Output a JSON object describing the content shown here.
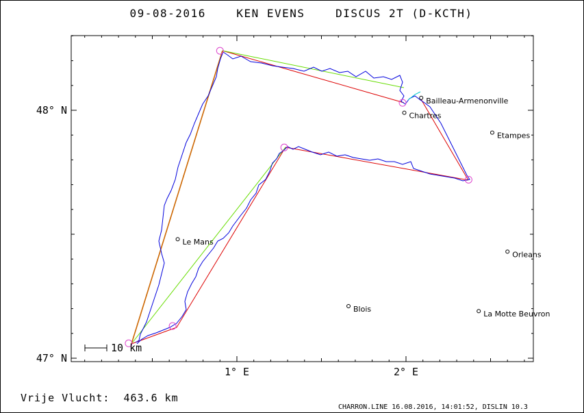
{
  "title": "09-08-2016    KEN EVENS    DISCUS 2T (D-KCTH)",
  "footer_left": "Vrije Vlucht:  463.6 km",
  "footer_right": "CHARRON.LINE 16.08.2016, 14:01:52, DISLIN 10.3",
  "scale_label": "10 km",
  "colors": {
    "frame": "#000000",
    "track": "#0000dd",
    "task_red": "#dd0000",
    "task_green": "#66dd00",
    "leg_orange": "#cc6600",
    "turnpoint": "#dd44cc",
    "cyan": "#00cccc"
  },
  "axes": {
    "x_ticks": [
      {
        "value": 1,
        "label": "1° E"
      },
      {
        "value": 2,
        "label": "2° E"
      }
    ],
    "y_ticks": [
      {
        "value": 47,
        "label": "47° N"
      },
      {
        "value": 48,
        "label": "48° N"
      }
    ]
  },
  "cities": [
    {
      "name": "Bailleau-Armenonville",
      "lon": 2.09,
      "lat": 48.05
    },
    {
      "name": "Chartres",
      "lon": 1.99,
      "lat": 47.99
    },
    {
      "name": "Etampes",
      "lon": 2.51,
      "lat": 47.91
    },
    {
      "name": "Le Mans",
      "lon": 0.65,
      "lat": 47.48
    },
    {
      "name": "Orleans",
      "lon": 2.6,
      "lat": 47.43
    },
    {
      "name": "Blois",
      "lon": 1.66,
      "lat": 47.21
    },
    {
      "name": "La Motte Beuvron",
      "lon": 2.43,
      "lat": 47.19
    }
  ],
  "turnpoints": [
    {
      "lon": 0.36,
      "lat": 47.06
    },
    {
      "lon": 0.9,
      "lat": 48.24
    },
    {
      "lon": 1.98,
      "lat": 48.03
    },
    {
      "lon": 2.37,
      "lat": 47.72
    },
    {
      "lon": 1.28,
      "lat": 47.85
    },
    {
      "lon": 0.62,
      "lat": 47.13
    }
  ]
}
